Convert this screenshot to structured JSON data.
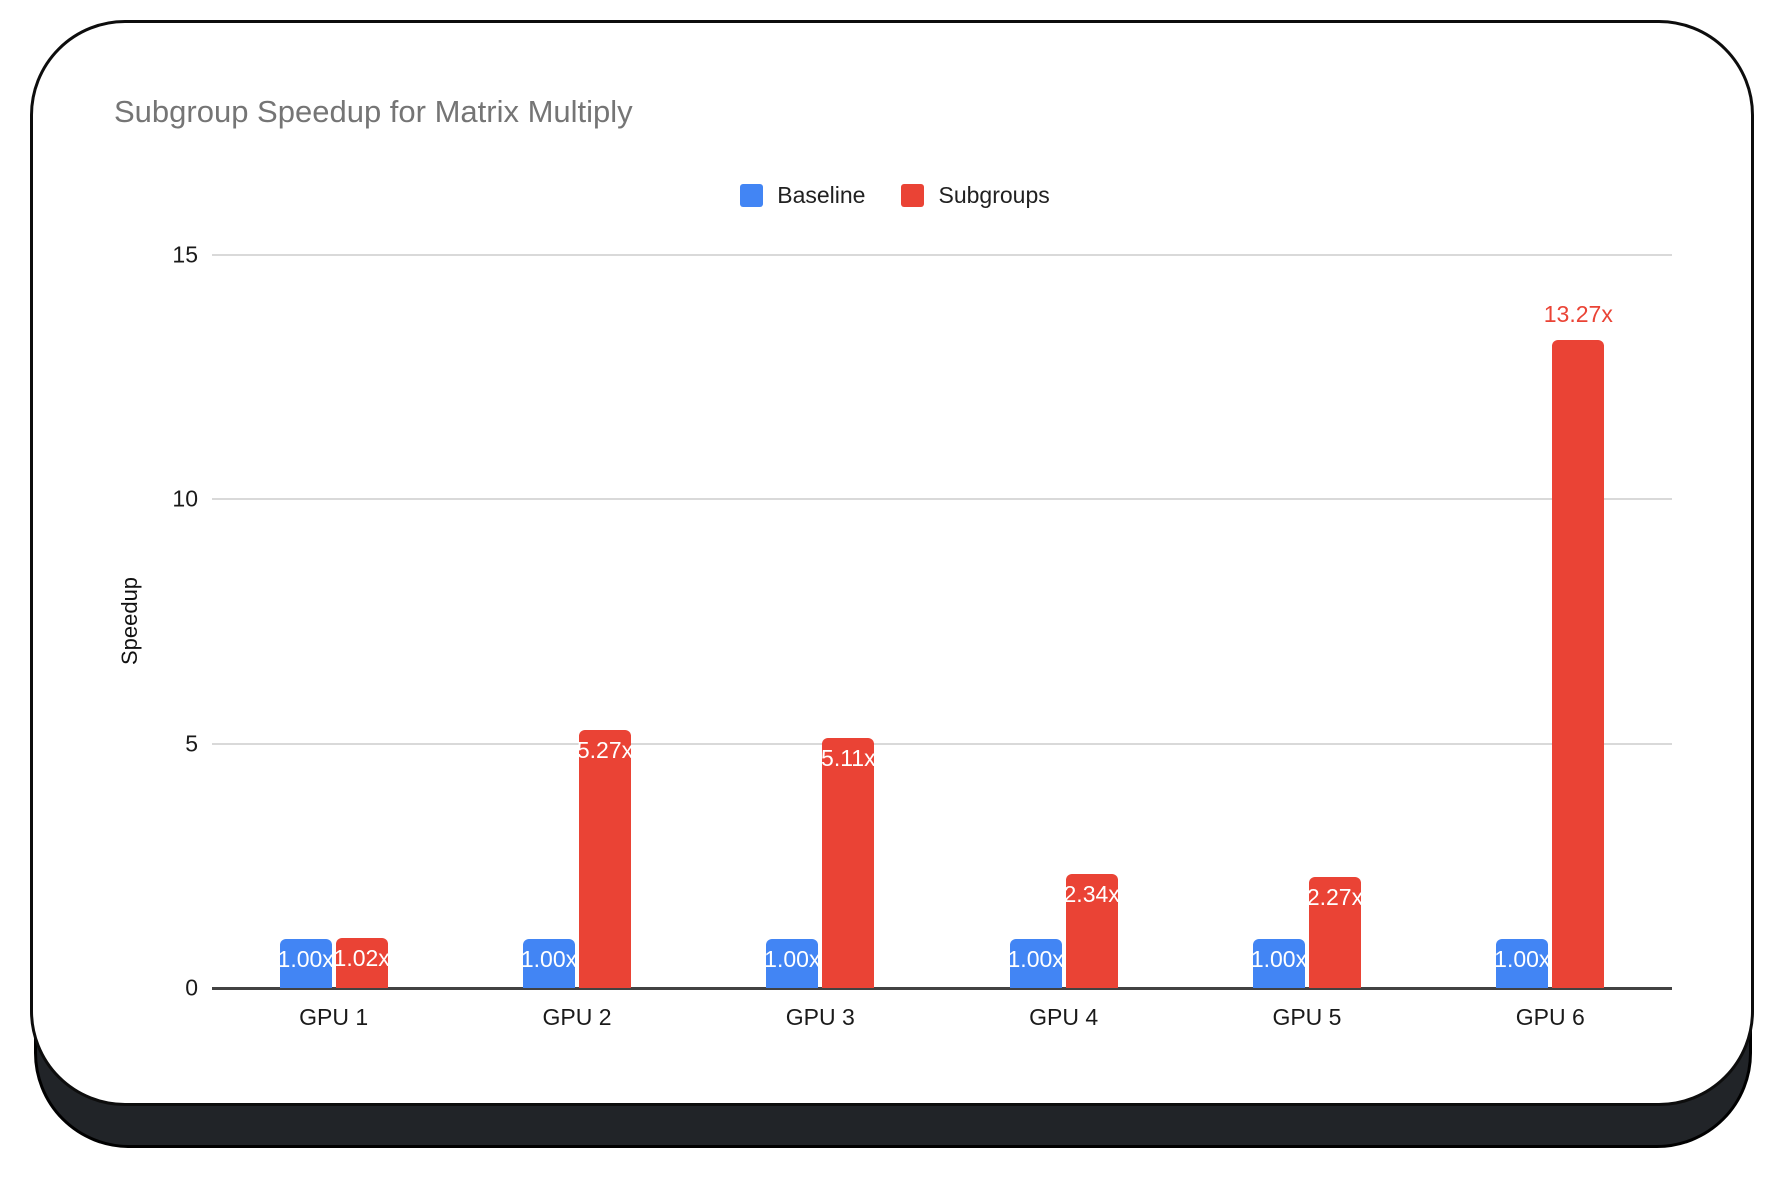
{
  "chart_data": {
    "type": "bar",
    "title": "Subgroup Speedup for Matrix Multiply",
    "ylabel": "Speedup",
    "xlabel": "",
    "ylim": [
      0,
      15
    ],
    "yticks": [
      0,
      5,
      10,
      15
    ],
    "grid": true,
    "legend_position": "top",
    "categories": [
      "GPU 1",
      "GPU 2",
      "GPU 3",
      "GPU 4",
      "GPU 5",
      "GPU 6"
    ],
    "series": [
      {
        "name": "Baseline",
        "color": "#4285F4",
        "values": [
          1.0,
          1.0,
          1.0,
          1.0,
          1.0,
          1.0
        ],
        "labels": [
          "1.00x",
          "1.00x",
          "1.00x",
          "1.00x",
          "1.00x",
          "1.00x"
        ],
        "label_placement": [
          "inside",
          "inside",
          "inside",
          "inside",
          "inside",
          "inside"
        ]
      },
      {
        "name": "Subgroups",
        "color": "#EA4335",
        "values": [
          1.02,
          5.27,
          5.11,
          2.34,
          2.27,
          13.27
        ],
        "labels": [
          "1.02x",
          "5.27x",
          "5.11x",
          "2.34x",
          "2.27x",
          "13.27x"
        ],
        "label_placement": [
          "inside",
          "inside",
          "inside",
          "inside",
          "inside",
          "above"
        ]
      }
    ],
    "label_color_inside": "#ffffff"
  },
  "style": {
    "title_color": "#757575",
    "grid_color": "#d9d9d9",
    "axis_color": "#424242",
    "text_color": "#1a1a1a",
    "card_border_color": "#0d0d0d",
    "card_base_color": "#212428",
    "background": "#ffffff"
  }
}
